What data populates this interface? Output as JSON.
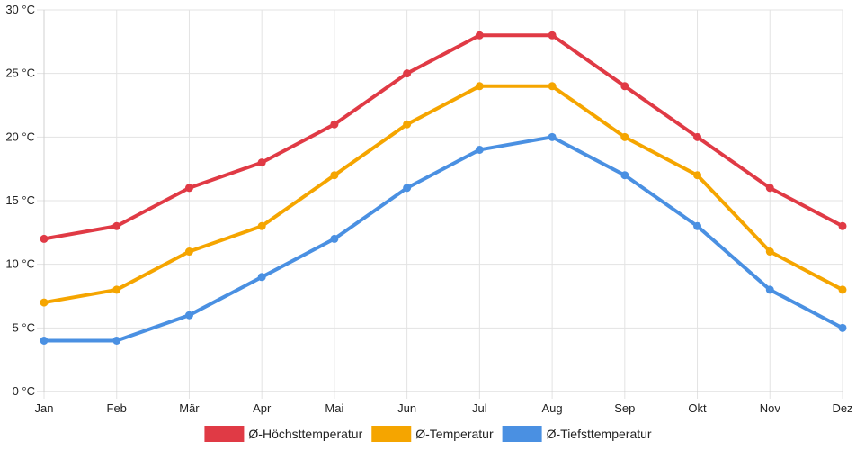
{
  "chart_data": {
    "type": "line",
    "title": "",
    "xlabel": "",
    "ylabel": "",
    "categories": [
      "Jan",
      "Feb",
      "Mär",
      "Apr",
      "Mai",
      "Jun",
      "Jul",
      "Aug",
      "Sep",
      "Okt",
      "Nov",
      "Dez"
    ],
    "y_ticks": [
      "0 °C",
      "5 °C",
      "10 °C",
      "15 °C",
      "20 °C",
      "25 °C",
      "30 °C"
    ],
    "ylim": [
      0,
      30
    ],
    "y_step": 5,
    "grid": true,
    "legend_position": "bottom",
    "series": [
      {
        "name": "Ø-Höchsttemperatur",
        "color": "#e03a45",
        "values": [
          12,
          13,
          16,
          18,
          21,
          25,
          28,
          28,
          24,
          20,
          16,
          13
        ]
      },
      {
        "name": "Ø-Temperatur",
        "color": "#f5a500",
        "values": [
          7,
          8,
          11,
          13,
          17,
          21,
          24,
          24,
          20,
          17,
          11,
          8
        ]
      },
      {
        "name": "Ø-Tiefsttemperatur",
        "color": "#4a90e2",
        "values": [
          4,
          4,
          6,
          9,
          12,
          16,
          19,
          20,
          17,
          13,
          8,
          5
        ]
      }
    ]
  }
}
